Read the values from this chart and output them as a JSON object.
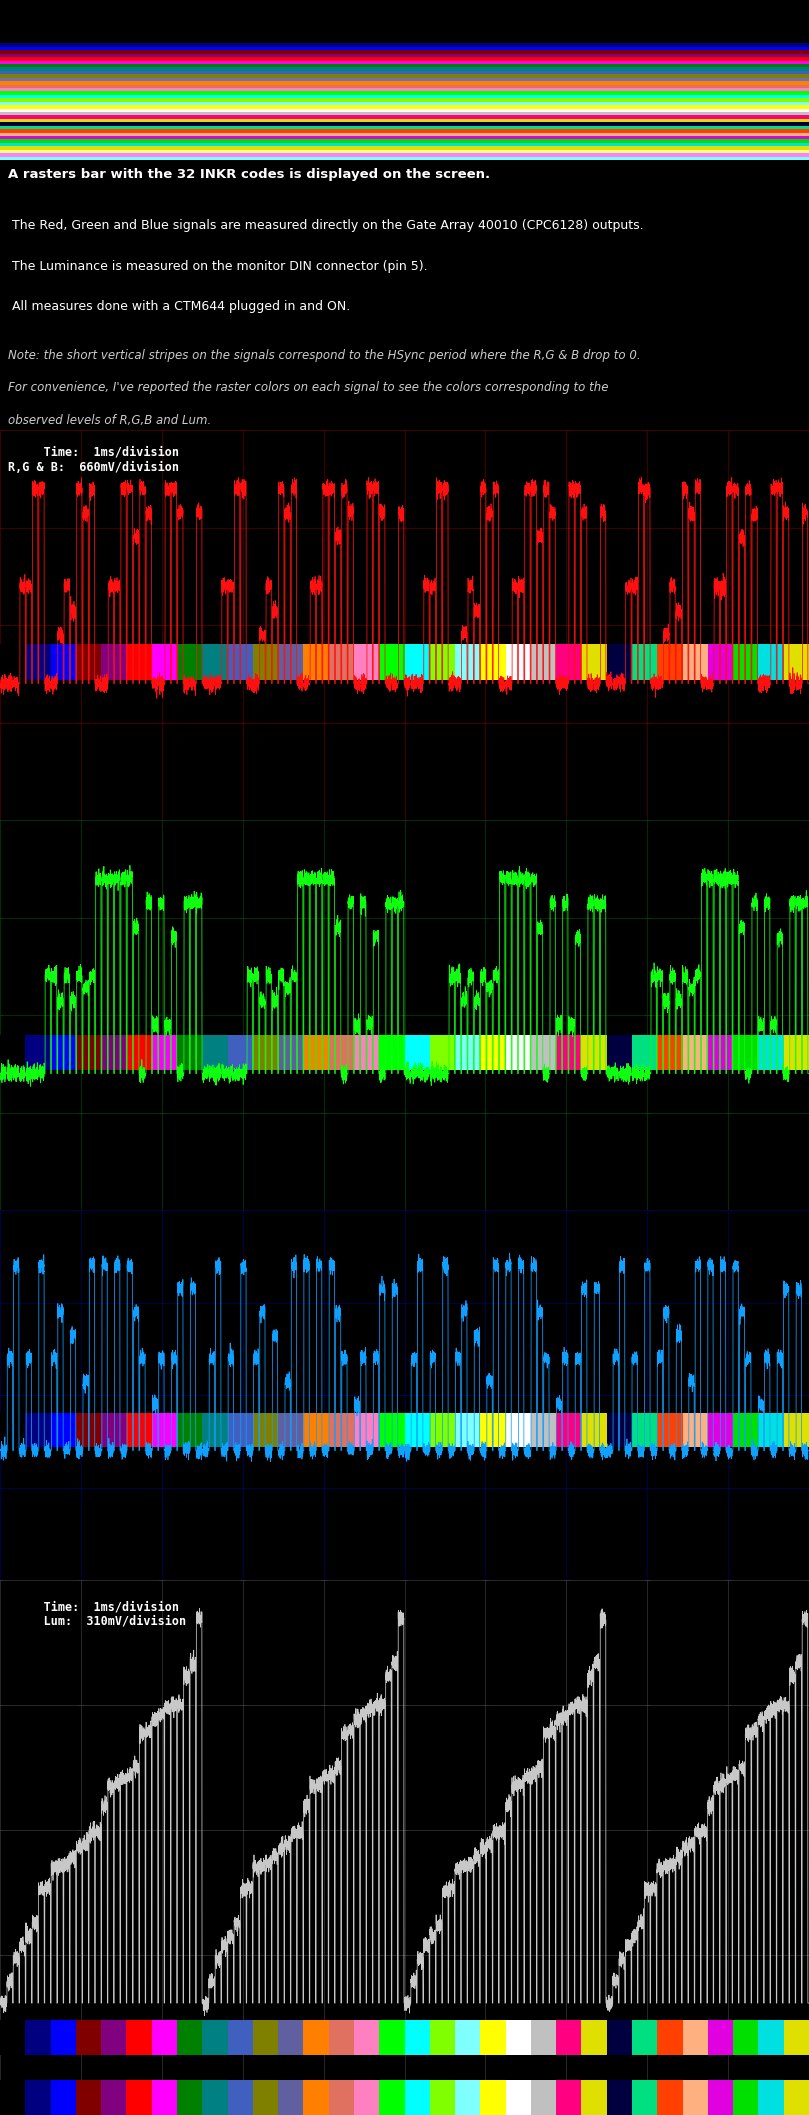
{
  "bg_color": "#000000",
  "info_text1": "A rasters bar with the 32 INKR codes is displayed on the screen.",
  "info_text2": " The Red, Green and Blue signals are measured directly on the Gate Array 40010 (CPC6128) outputs.",
  "info_text3": " The Luminance is measured on the monitor DIN connector (pin 5).",
  "info_text4": " All measures done with a CTM644 plugged in and ON.",
  "note_text1": "Note: the short vertical stripes on the signals correspond to the HSync period where the R,G & B drop to 0.",
  "note_text2": "For convenience, I've reported the raster colors on each signal to see the colors corresponding to the",
  "note_text3": "observed levels of R,G,B and Lum.",
  "label_rgb": "     Time:  1ms/division\nR,G & B:  660mV/division",
  "label_lum": "     Time:  1ms/division\n     Lum:  310mV/division",
  "grid_color_red": "#5a0000",
  "grid_color_green": "#004500",
  "grid_color_blue": "#00006a",
  "grid_color_lum": "#3a3a3a",
  "signal_color_red": "#ff1010",
  "signal_color_green": "#10ff10",
  "signal_color_blue": "#10a0ff",
  "signal_color_lum": "#c8c8c8",
  "cpc_palette": [
    "#000000",
    "#000080",
    "#0000ff",
    "#800000",
    "#800080",
    "#ff0000",
    "#ff00ff",
    "#008000",
    "#008080",
    "#4060c0",
    "#808000",
    "#6060a0",
    "#ff8000",
    "#e07060",
    "#ff80c0",
    "#00ff00",
    "#00ffff",
    "#80ff00",
    "#80ffff",
    "#ffff00",
    "#ffffff",
    "#c0c0c0",
    "#ff0080",
    "#e0e000",
    "#000040",
    "#00e080",
    "#ff4000",
    "#ffb080",
    "#e000e0",
    "#00e000",
    "#00e0e0",
    "#e0e000"
  ],
  "cpc32_r": [
    0.0,
    0.0,
    0.0,
    0.5,
    0.5,
    1.0,
    1.0,
    0.0,
    0.0,
    0.25,
    0.5,
    0.375,
    1.0,
    0.875,
    1.0,
    0.0,
    0.0,
    0.5,
    0.5,
    1.0,
    1.0,
    0.75,
    1.0,
    0.875,
    0.0,
    0.0,
    1.0,
    1.0,
    0.875,
    0.0,
    0.0,
    0.875
  ],
  "cpc32_g": [
    0.0,
    0.0,
    0.0,
    0.0,
    0.0,
    0.0,
    0.0,
    0.5,
    0.5,
    0.375,
    0.5,
    0.375,
    0.5,
    0.44,
    0.5,
    1.0,
    1.0,
    1.0,
    1.0,
    1.0,
    1.0,
    0.75,
    0.0,
    0.875,
    0.25,
    0.875,
    0.25,
    0.7,
    0.0,
    0.875,
    0.875,
    0.875
  ],
  "cpc32_b": [
    0.0,
    0.5,
    1.0,
    0.0,
    0.5,
    0.0,
    1.0,
    0.0,
    0.5,
    0.75,
    0.0,
    0.625,
    0.0,
    0.375,
    1.0,
    0.0,
    1.0,
    0.0,
    1.0,
    0.0,
    1.0,
    0.75,
    0.5,
    0.0,
    0.25,
    0.5,
    0.0,
    0.5,
    0.875,
    0.0,
    0.875,
    0.0
  ],
  "stripe_colors_top": [
    "#000000",
    "#000080",
    "#0000ff",
    "#800000",
    "#800080",
    "#ff0000",
    "#ff00ff",
    "#008000",
    "#008080",
    "#4060c0",
    "#808000",
    "#6060a0",
    "#ff8000",
    "#e07060",
    "#ff80c0",
    "#00ff00",
    "#00ffff",
    "#80ff00",
    "#80ffff",
    "#ffff00",
    "#ffffff",
    "#c0c0c0",
    "#ff0080",
    "#e0e000",
    "#000040",
    "#00e080",
    "#ff4000",
    "#ffb080",
    "#e000e0",
    "#00e000",
    "#00e0e0",
    "#e0e000",
    "#ffff80",
    "#ff80ff",
    "#80ffff",
    "#80ff80",
    "#ff8080",
    "#8080ff",
    "#c0ff80",
    "#ffc080",
    "#80c0ff",
    "#c080ff",
    "#ff80c0",
    "#80ffc0",
    "#ffff40",
    "#ff40ff",
    "#40ffff",
    "#40ff40",
    "#ff4040",
    "#4040ff",
    "#ffffc0",
    "#ffc0ff",
    "#c0ffff",
    "#c0ffc0",
    "#ffc0c0",
    "#c0c0ff",
    "#ffffe0",
    "#ffe0ff",
    "#e0ffff",
    "#e0ffe0",
    "#ffe0e0",
    "#e0e0ff",
    "#f0f0f0",
    "#e0e0e0"
  ],
  "fig_width": 8.09,
  "fig_height": 21.15
}
